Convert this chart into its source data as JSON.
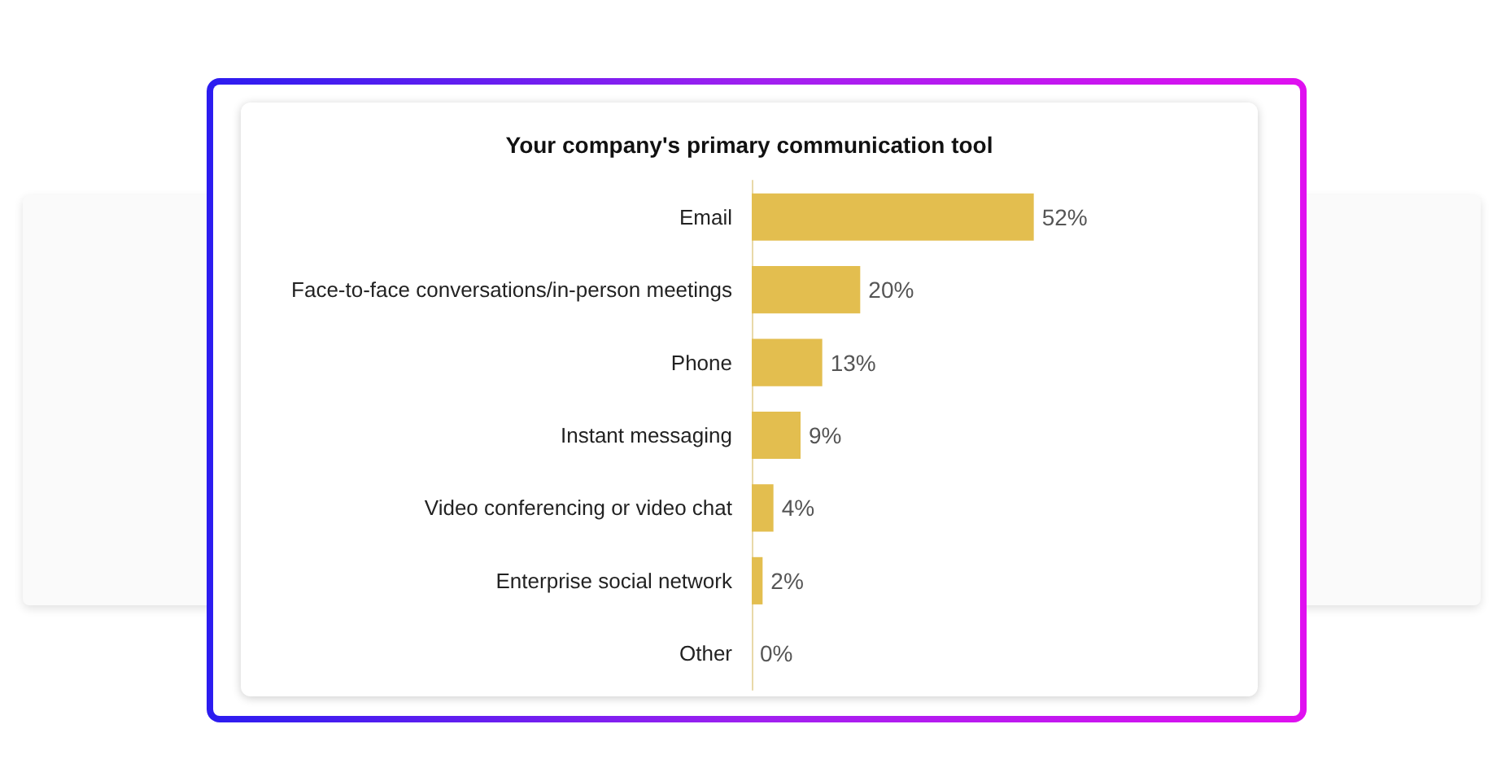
{
  "chart_data": {
    "type": "bar",
    "orientation": "horizontal",
    "title": "Your company's primary communication tool",
    "categories": [
      "Email",
      "Face-to-face conversations/in-person meetings",
      "Phone",
      "Instant messaging",
      "Video conferencing or video chat",
      "Enterprise social network",
      "Other"
    ],
    "values": [
      52,
      20,
      13,
      9,
      4,
      2,
      0
    ],
    "value_labels": [
      "52%",
      "20%",
      "13%",
      "9%",
      "4%",
      "2%",
      "0%"
    ],
    "color": "#e3be4f",
    "grid": false,
    "tick_labels": "y"
  }
}
